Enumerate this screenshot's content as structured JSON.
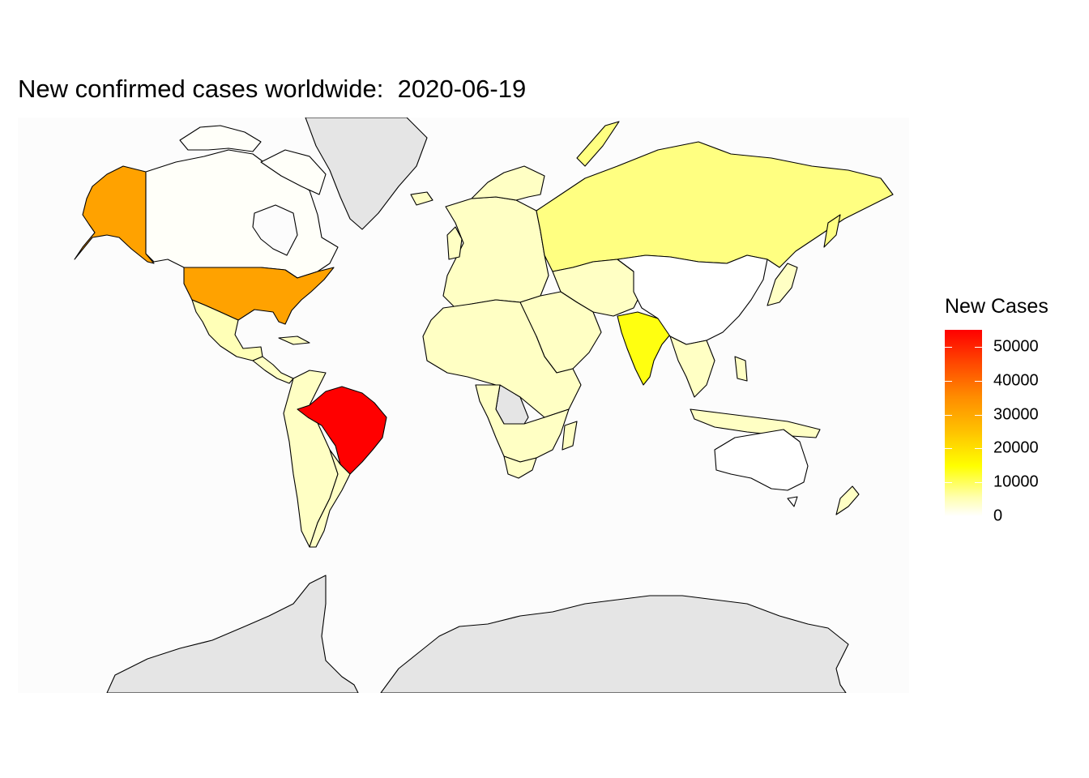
{
  "title": "New confirmed cases worldwide:  2020-06-19",
  "legend": {
    "title": "New Cases",
    "ticks": [
      {
        "label": "50000",
        "value": 50000
      },
      {
        "label": "40000",
        "value": 40000
      },
      {
        "label": "30000",
        "value": 30000
      },
      {
        "label": "20000",
        "value": 20000
      },
      {
        "label": "10000",
        "value": 10000
      },
      {
        "label": "0",
        "value": 0
      }
    ],
    "range": [
      0,
      55000
    ],
    "colors": {
      "high": "#ff0000",
      "mid_high": "#ff8c00",
      "mid": "#ffff00",
      "low": "#ffffff",
      "no_data": "#e5e5e5"
    }
  },
  "regions": [
    {
      "name": "Brazil",
      "value": 55000
    },
    {
      "name": "United States",
      "value": 31000
    },
    {
      "name": "Alaska",
      "value": 31000
    },
    {
      "name": "India",
      "value": 14000
    },
    {
      "name": "Russia",
      "value": 8000
    },
    {
      "name": "Mexico",
      "value": 5000
    },
    {
      "name": "South Africa",
      "value": 4000
    },
    {
      "name": "Canada",
      "value": 400
    },
    {
      "name": "China",
      "value": 30
    },
    {
      "name": "Australia",
      "value": 20
    }
  ]
}
